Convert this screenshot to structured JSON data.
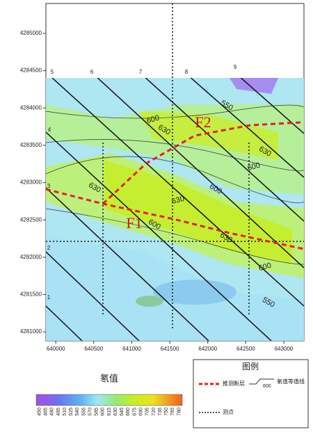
{
  "map": {
    "xlim": [
      639870,
      643265
    ],
    "ylim": [
      4280880,
      4285400
    ],
    "xticks": [
      640000,
      640500,
      641000,
      641500,
      642000,
      642500,
      643000
    ],
    "yticks": [
      4281000,
      4281500,
      4282000,
      4282500,
      4283000,
      4283500,
      4284000,
      4284500,
      4285000
    ],
    "line_numbers": [
      "5",
      "6",
      "7",
      "8",
      "9",
      "4",
      "3",
      "2",
      "1"
    ],
    "contour_labels": [
      "550",
      "600",
      "630",
      "630",
      "600",
      "600",
      "630",
      "630",
      "600",
      "630",
      "600",
      "550"
    ],
    "faults": [
      "F2",
      "F1"
    ]
  },
  "colorbar": {
    "title": "氡值",
    "labels": [
      450,
      465,
      480,
      495,
      510,
      525,
      540,
      555,
      570,
      585,
      600,
      615,
      630,
      645,
      660,
      675,
      690,
      705,
      720,
      735,
      750,
      765,
      780
    ]
  },
  "legend": {
    "title": "图例",
    "fault": "推测断层",
    "contour": "氡值等值线",
    "contour_sample": "600",
    "point": "测点"
  }
}
